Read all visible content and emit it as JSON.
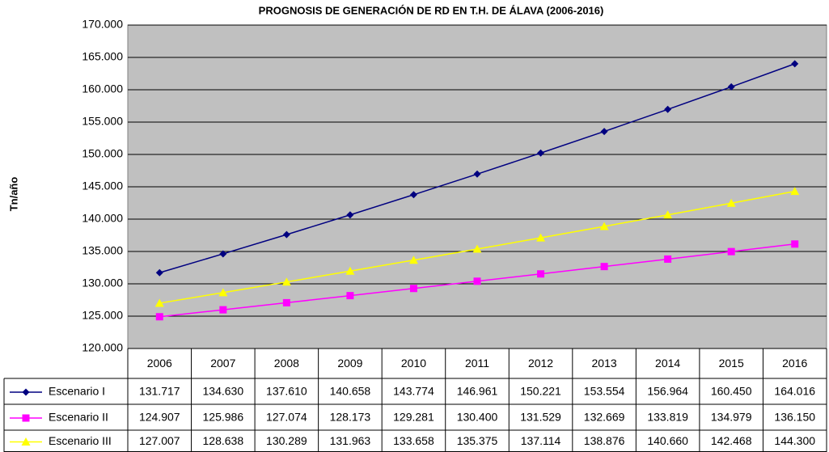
{
  "chart_data": {
    "type": "line",
    "title": "PROGNOSIS DE GENERACIÓN DE RD EN T.H. DE ÁLAVA (2006-2016)",
    "ylabel": "Tn/año",
    "categories": [
      "2006",
      "2007",
      "2008",
      "2009",
      "2010",
      "2011",
      "2012",
      "2013",
      "2014",
      "2015",
      "2016"
    ],
    "series": [
      {
        "name": "Escenario I",
        "color": "#000080",
        "marker": "diamond",
        "values": [
          131717,
          134630,
          137610,
          140658,
          143774,
          146961,
          150221,
          153554,
          156964,
          160450,
          164016
        ],
        "value_labels": [
          "131.717",
          "134.630",
          "137.610",
          "140.658",
          "143.774",
          "146.961",
          "150.221",
          "153.554",
          "156.964",
          "160.450",
          "164.016"
        ]
      },
      {
        "name": "Escenario II",
        "color": "#ff00ff",
        "marker": "square",
        "values": [
          124907,
          125986,
          127074,
          128173,
          129281,
          130400,
          131529,
          132669,
          133819,
          134979,
          136150
        ],
        "value_labels": [
          "124.907",
          "125.986",
          "127.074",
          "128.173",
          "129.281",
          "130.400",
          "131.529",
          "132.669",
          "133.819",
          "134.979",
          "136.150"
        ]
      },
      {
        "name": "Escenario III",
        "color": "#ffff00",
        "marker": "triangle",
        "values": [
          127007,
          128638,
          130289,
          131963,
          133658,
          135375,
          137114,
          138876,
          140660,
          142468,
          144300
        ],
        "value_labels": [
          "127.007",
          "128.638",
          "130.289",
          "131.963",
          "133.658",
          "135.375",
          "137.114",
          "138.876",
          "140.660",
          "142.468",
          "144.300"
        ]
      }
    ],
    "ylim": [
      120000,
      170000
    ],
    "yticks": [
      {
        "value": 120000,
        "label": "120.000"
      },
      {
        "value": 125000,
        "label": "125.000"
      },
      {
        "value": 130000,
        "label": "130.000"
      },
      {
        "value": 135000,
        "label": "135.000"
      },
      {
        "value": 140000,
        "label": "140.000"
      },
      {
        "value": 145000,
        "label": "145.000"
      },
      {
        "value": 150000,
        "label": "150.000"
      },
      {
        "value": 155000,
        "label": "155.000"
      },
      {
        "value": 160000,
        "label": "160.000"
      },
      {
        "value": 165000,
        "label": "165.000"
      },
      {
        "value": 170000,
        "label": "170.000"
      }
    ],
    "grid": true,
    "plot_background": "#c0c0c0"
  }
}
